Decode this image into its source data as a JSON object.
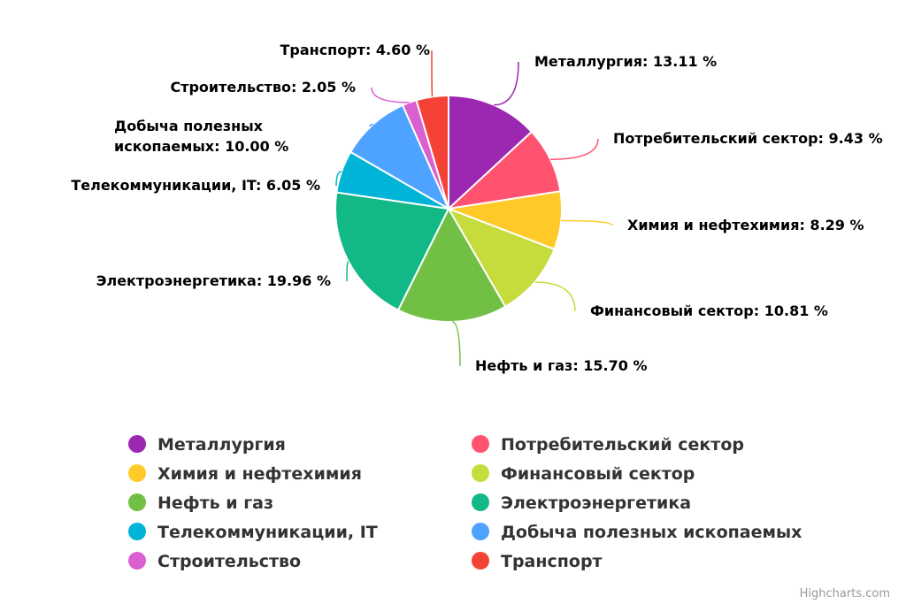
{
  "chart_data": {
    "type": "pie",
    "title": "",
    "series": [
      {
        "data": [
          {
            "name": "Металлургия",
            "value": 13.11,
            "label": "Металлургия: 13.11 %",
            "color": "#9C27B0"
          },
          {
            "name": "Потребительский сектор",
            "value": 9.43,
            "label": "Потребительский сектор: 9.43 %",
            "color": "#FF5370"
          },
          {
            "name": "Химия и нефтехимия",
            "value": 8.29,
            "label": "Химия и нефтехимия: 8.29 %",
            "color": "#FFCA28"
          },
          {
            "name": "Финансовый сектор",
            "value": 10.81,
            "label": "Финансовый сектор: 10.81 %",
            "color": "#C6DC3C"
          },
          {
            "name": "Нефть и газ",
            "value": 15.7,
            "label": "Нефть и газ: 15.70 %",
            "color": "#71BF45"
          },
          {
            "name": "Электроэнергетика",
            "value": 19.96,
            "label": "Электроэнергетика: 19.96 %",
            "color": "#12B886"
          },
          {
            "name": "Телекоммуникации, IT",
            "value": 6.05,
            "label": "Телекоммуникации, IT: 6.05 %",
            "color": "#00B4D8"
          },
          {
            "name": "Добыча полезных ископаемых",
            "value": 10.0,
            "label": "Добыча полезных ископаемых: 10.00 %",
            "label_lines": [
              "Добыча полезных",
              "ископаемых: 10.00 %"
            ],
            "color": "#4DA3FF"
          },
          {
            "name": "Строительство",
            "value": 2.05,
            "label": "Строительство: 2.05 %",
            "color": "#DA5FD0"
          },
          {
            "name": "Транспорт",
            "value": 4.6,
            "label": "Транспорт: 4.60 %",
            "color": "#F44336"
          }
        ]
      }
    ],
    "legend": {
      "position": "bottom",
      "columns": 2
    }
  },
  "credits": "Highcharts.com"
}
